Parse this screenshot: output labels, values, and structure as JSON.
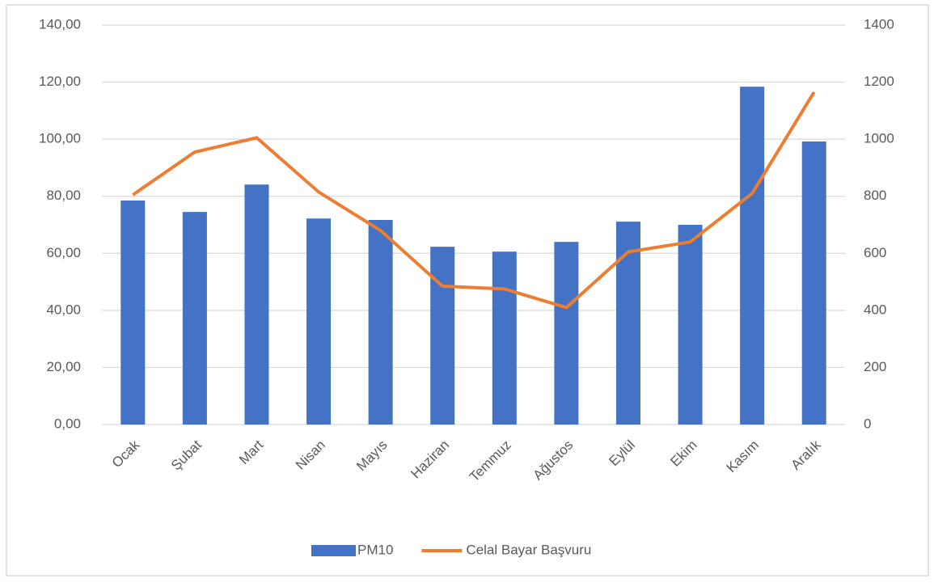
{
  "chart_data": {
    "type": "bar_line",
    "categories": [
      "Ocak",
      "Şubat",
      "Mart",
      "Nisan",
      "Mayıs",
      "Haziran",
      "Temmuz",
      "Ağustos",
      "Eylül",
      "Ekim",
      "Kasım",
      "Aralık"
    ],
    "series": [
      {
        "name": "PM10",
        "type": "bar",
        "color": "#4472c4",
        "axis": "y",
        "values": [
          78.5,
          74.5,
          84.1,
          72.2,
          71.7,
          62.3,
          60.6,
          64.0,
          71.1,
          70.0,
          118.4,
          99.2
        ]
      },
      {
        "name": "Celal Bayar Başvuru",
        "type": "line",
        "color": "#ed7d31",
        "axis": "y2",
        "values": [
          805,
          955,
          1005,
          815,
          680,
          485,
          475,
          410,
          605,
          640,
          810,
          1165
        ]
      }
    ],
    "ylim": [
      0,
      140
    ],
    "yticks": [
      {
        "value": 0,
        "label": "0,00"
      },
      {
        "value": 20,
        "label": "20,00"
      },
      {
        "value": 40,
        "label": "40,00"
      },
      {
        "value": 60,
        "label": "60,00"
      },
      {
        "value": 80,
        "label": "80,00"
      },
      {
        "value": 100,
        "label": "100,00"
      },
      {
        "value": 120,
        "label": "120,00"
      },
      {
        "value": 140,
        "label": "140,00"
      }
    ],
    "y2lim": [
      0,
      1400
    ],
    "y2ticks": [
      0,
      200,
      400,
      600,
      800,
      1000,
      1200,
      1400
    ],
    "grid": true,
    "legend": "bottom"
  }
}
